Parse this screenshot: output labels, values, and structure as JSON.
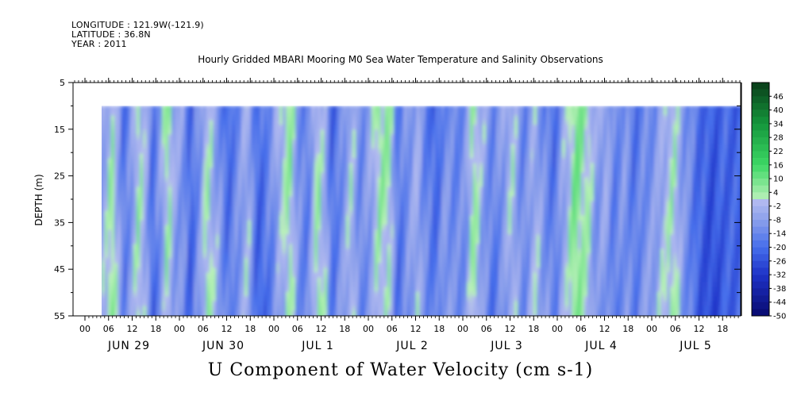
{
  "header": {
    "longitude": "LONGITUDE : 121.9W(-121.9)",
    "latitude": "LATITUDE : 36.8N",
    "year": "YEAR : 2011"
  },
  "chart_data": {
    "type": "heatmap",
    "title": "Hourly Gridded MBARI Mooring M0 Sea Water Temperature and Salinity Observations",
    "variable": "U Component of Water Velocity (cm s-1)",
    "ylabel": "DEPTH (m)",
    "ylim": [
      55,
      5
    ],
    "y_ticks": [
      "5",
      "15",
      "25",
      "35",
      "45",
      "55"
    ],
    "data_depth_range": [
      10,
      55
    ],
    "x_hour_ticks": [
      "00",
      "06",
      "12",
      "18",
      "00",
      "06",
      "12",
      "18",
      "00",
      "06",
      "12",
      "18",
      "00",
      "06",
      "12",
      "18",
      "00",
      "06",
      "12",
      "18",
      "00",
      "06",
      "12",
      "18",
      "00",
      "06",
      "12",
      "18"
    ],
    "x_day_labels": [
      "JUN 29",
      "JUN 30",
      "JUL  1",
      "JUL  2",
      "JUL  3",
      "JUL  4",
      "JUL  5"
    ],
    "colorbar": {
      "labels": [
        "46",
        "40",
        "34",
        "28",
        "22",
        "16",
        "10",
        "4",
        "-2",
        "-8",
        "-14",
        "-20",
        "-26",
        "-32",
        "-38",
        "-44",
        "-50"
      ],
      "range": [
        -50,
        52
      ],
      "step": 3
    },
    "colors": {
      "strong_negative": "#0a0f7a",
      "negative": "#3f66e0",
      "near_zero_negative": "#a8b0ea",
      "near_zero_positive": "#b8f0b8",
      "positive": "#26d05a",
      "strong_positive": "#0b4a1e"
    },
    "time_pattern": [
      {
        "t": 0.0,
        "v": -4
      },
      {
        "t": 0.06,
        "v": 3
      },
      {
        "t": 0.12,
        "v": -10
      },
      {
        "t": 0.2,
        "v": -4
      },
      {
        "t": 0.27,
        "v": 4
      },
      {
        "t": 0.33,
        "v": -6
      },
      {
        "t": 0.4,
        "v": -18
      },
      {
        "t": 0.47,
        "v": -10
      },
      {
        "t": 0.55,
        "v": 3
      },
      {
        "t": 0.62,
        "v": -4
      },
      {
        "t": 0.7,
        "v": -20
      },
      {
        "t": 0.78,
        "v": -10
      },
      {
        "t": 0.86,
        "v": 4
      },
      {
        "t": 0.94,
        "v": -8
      },
      {
        "t": 1.02,
        "v": -10
      },
      {
        "t": 1.1,
        "v": -22
      },
      {
        "t": 1.18,
        "v": -12
      },
      {
        "t": 1.28,
        "v": 2
      },
      {
        "t": 1.38,
        "v": -8
      },
      {
        "t": 1.5,
        "v": -20
      },
      {
        "t": 1.6,
        "v": -12
      },
      {
        "t": 1.7,
        "v": -4
      },
      {
        "t": 1.82,
        "v": -22
      },
      {
        "t": 1.95,
        "v": -14
      },
      {
        "t": 2.05,
        "v": -4
      },
      {
        "t": 2.15,
        "v": 4
      },
      {
        "t": 2.25,
        "v": -12
      },
      {
        "t": 2.33,
        "v": -16
      },
      {
        "t": 2.45,
        "v": 3
      },
      {
        "t": 2.52,
        "v": -4
      },
      {
        "t": 2.6,
        "v": -20
      },
      {
        "t": 2.7,
        "v": -12
      },
      {
        "t": 2.8,
        "v": -2
      },
      {
        "t": 2.9,
        "v": -14
      },
      {
        "t": 3.0,
        "v": -8
      },
      {
        "t": 3.1,
        "v": 4
      },
      {
        "t": 3.2,
        "v": 2
      },
      {
        "t": 3.3,
        "v": -18
      },
      {
        "t": 3.42,
        "v": -10
      },
      {
        "t": 3.5,
        "v": -4
      },
      {
        "t": 3.58,
        "v": -14
      },
      {
        "t": 3.7,
        "v": -20
      },
      {
        "t": 3.8,
        "v": -10
      },
      {
        "t": 3.9,
        "v": -14
      },
      {
        "t": 4.0,
        "v": -12
      },
      {
        "t": 4.1,
        "v": 4
      },
      {
        "t": 4.2,
        "v": -8
      },
      {
        "t": 4.3,
        "v": -16
      },
      {
        "t": 4.4,
        "v": -10
      },
      {
        "t": 4.5,
        "v": -2
      },
      {
        "t": 4.62,
        "v": -14
      },
      {
        "t": 4.75,
        "v": -4
      },
      {
        "t": 4.85,
        "v": -12
      },
      {
        "t": 4.95,
        "v": -18
      },
      {
        "t": 5.05,
        "v": -6
      },
      {
        "t": 5.18,
        "v": 8
      },
      {
        "t": 5.3,
        "v": 2
      },
      {
        "t": 5.4,
        "v": -10
      },
      {
        "t": 5.5,
        "v": -6
      },
      {
        "t": 5.58,
        "v": -16
      },
      {
        "t": 5.7,
        "v": -10
      },
      {
        "t": 5.8,
        "v": -18
      },
      {
        "t": 5.9,
        "v": -12
      },
      {
        "t": 6.0,
        "v": -10
      },
      {
        "t": 6.1,
        "v": -4
      },
      {
        "t": 6.2,
        "v": 2
      },
      {
        "t": 6.35,
        "v": -12
      },
      {
        "t": 6.5,
        "v": -22
      },
      {
        "t": 6.62,
        "v": -26
      },
      {
        "t": 6.75,
        "v": -22
      }
    ]
  }
}
